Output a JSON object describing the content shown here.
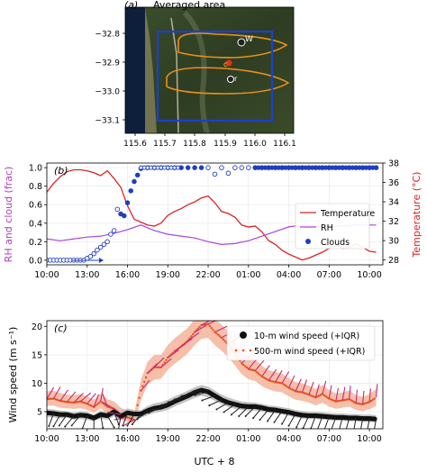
{
  "colors": {
    "temperature": "#dd2222",
    "rh": "#aa44dd",
    "clouds": "#1f3fbf",
    "ws10": "#111111",
    "ws500": "#e8501a",
    "ws500_fill": "#f4b49a",
    "ws10_fill": "#b8b8b8",
    "barb500": "#c4287a",
    "barb10": "#222222",
    "rhAxis": "#b040c0",
    "tempAxis": "#dd2222",
    "mapBox": "#1a3fd6",
    "mapContour": "#e8901a"
  },
  "panels": {
    "a": {
      "label": "(a)",
      "title": "Averaged area",
      "yticks": [
        "−32.8",
        "−32.9",
        "−33.0",
        "−33.1"
      ],
      "xticks": [
        "115.6",
        "115.7",
        "115.8",
        "115.9",
        "116.0",
        "116.1"
      ],
      "markers": [
        "W",
        "c",
        "r"
      ]
    },
    "b": {
      "label": "(b)",
      "ylabel_left": "RH and cloud (frac)",
      "ylabel_right": "Temperature (°C)",
      "yticks_left": [
        "0.0",
        "0.2",
        "0.4",
        "0.6",
        "0.8",
        "1.0"
      ],
      "yticks_right": [
        "28",
        "30",
        "32",
        "34",
        "36",
        "38"
      ],
      "xticks": [
        "10:00",
        "13:00",
        "16:00",
        "19:00",
        "22:00",
        "01:00",
        "04:00",
        "07:00",
        "10:00"
      ],
      "legend": [
        "Temperature",
        "RH",
        "Clouds"
      ]
    },
    "c": {
      "label": "(c)",
      "ylabel": "Wind speed (m s⁻¹)",
      "xlabel": "UTC + 8",
      "yticks": [
        "5",
        "10",
        "15",
        "20"
      ],
      "xticks": [
        "10:00",
        "13:00",
        "16:00",
        "19:00",
        "22:00",
        "01:00",
        "04:00",
        "07:00",
        "10:00"
      ],
      "legend": [
        "10-m wind speed (+IQR)",
        "500-m wind speed (+IQR)"
      ]
    }
  },
  "chart_data": [
    {
      "type": "line",
      "panel": "b",
      "x_unit": "hours since 10:00 (UTC+8)",
      "xlim": [
        0,
        25
      ],
      "ylim_left": [
        -0.05,
        1.05
      ],
      "ylim_right": [
        27.5,
        38
      ],
      "series": [
        {
          "name": "Temperature",
          "axis": "right",
          "x": [
            0,
            0.5,
            1,
            1.5,
            2,
            2.5,
            3,
            3.5,
            4,
            4.5,
            5,
            5.5,
            6,
            6.5,
            7,
            7.5,
            8,
            8.5,
            9,
            9.5,
            10,
            10.5,
            11,
            11.5,
            12,
            12.5,
            13,
            13.5,
            14,
            14.5,
            15,
            15.5,
            16,
            16.5,
            17,
            17.5,
            18,
            18.5,
            19,
            19.5,
            20,
            20.5,
            21,
            21.5,
            22,
            22.5,
            23,
            23.5,
            24,
            24.5
          ],
          "y": [
            35.0,
            35.9,
            36.6,
            37.1,
            37.3,
            37.3,
            37.2,
            37.0,
            36.7,
            37.2,
            36.4,
            35.5,
            33.6,
            32.2,
            31.9,
            31.6,
            31.5,
            31.8,
            32.6,
            33.0,
            33.3,
            33.7,
            34.0,
            34.4,
            34.6,
            33.9,
            33.0,
            32.8,
            32.4,
            31.6,
            31.4,
            31.5,
            30.9,
            30.0,
            29.6,
            29.0,
            28.6,
            28.3,
            28.0,
            28.2,
            28.5,
            28.8,
            29.2,
            29.6,
            29.2,
            29.3,
            29.7,
            29.3,
            28.9,
            28.8
          ]
        },
        {
          "name": "RH",
          "axis": "left",
          "x": [
            0,
            1,
            2,
            3,
            4,
            5,
            6,
            7,
            8,
            9,
            10,
            11,
            12,
            13,
            14,
            15,
            16,
            17,
            18,
            19,
            20,
            21,
            22,
            23,
            24,
            24.5
          ],
          "y": [
            0.23,
            0.21,
            0.23,
            0.25,
            0.26,
            0.29,
            0.33,
            0.38,
            0.32,
            0.28,
            0.26,
            0.24,
            0.2,
            0.17,
            0.18,
            0.21,
            0.26,
            0.31,
            0.36,
            0.38,
            0.37,
            0.36,
            0.37,
            0.38,
            0.38,
            0.38
          ]
        },
        {
          "name": "Clouds",
          "axis": "left",
          "marker": "circle",
          "x": [
            0,
            0.25,
            0.5,
            0.75,
            1,
            1.25,
            1.5,
            1.75,
            2,
            2.25,
            2.5,
            2.75,
            3,
            3.25,
            3.5,
            3.75,
            4,
            4.25,
            4.5,
            4.75,
            5,
            5.25,
            5.5,
            5.75,
            6,
            6.25,
            6.5,
            6.75,
            7,
            7.5,
            8,
            8.5,
            9,
            9.5,
            10,
            10.5,
            11,
            11.5,
            12,
            12.5,
            13,
            13.5,
            14,
            14.5,
            15,
            15.5,
            16,
            16.5,
            17,
            17.5,
            18,
            18.5,
            19,
            19.5,
            20,
            20.5,
            21,
            21.5,
            22,
            22.5,
            23,
            23.5,
            24,
            24.5
          ],
          "y": [
            0.0,
            0.0,
            0.0,
            0.0,
            0.0,
            0.0,
            0.0,
            0.0,
            0.0,
            0.0,
            0.0,
            0.0,
            0.02,
            0.04,
            0.07,
            0.11,
            0.14,
            0.17,
            0.2,
            0.28,
            0.32,
            0.55,
            0.5,
            0.48,
            0.62,
            0.75,
            0.85,
            0.92,
            0.99,
            1.0,
            1.0,
            1.0,
            1.0,
            1.0,
            1.0,
            1.0,
            1.0,
            1.0,
            1.0,
            0.93,
            1.0,
            0.94,
            1.0,
            1.0,
            1.0,
            1.0,
            1.0,
            1.0,
            1.0,
            1.0,
            1.0,
            1.0,
            1.0,
            1.0,
            1.0,
            1.0,
            1.0,
            1.0,
            1.0,
            1.0,
            1.0,
            1.0,
            1.0,
            1.0
          ]
        }
      ]
    },
    {
      "type": "line",
      "panel": "c",
      "x_unit": "hours since 10:00 (UTC+8)",
      "xlim": [
        0,
        25
      ],
      "ylim": [
        2,
        21
      ],
      "xlabel": "UTC + 8",
      "ylabel": "Wind speed (m s⁻¹)",
      "series": [
        {
          "name": "10-m wind speed (+IQR)",
          "marker": "circle",
          "x": [
            0,
            0.5,
            1,
            1.5,
            2,
            2.5,
            3,
            3.5,
            4,
            4.5,
            5,
            5.5,
            6,
            6.5,
            7,
            7.5,
            8,
            8.5,
            9,
            9.5,
            10,
            10.5,
            11,
            11.5,
            12,
            12.5,
            13,
            13.5,
            14,
            14.5,
            15,
            15.5,
            16,
            16.5,
            17,
            17.5,
            18,
            18.5,
            19,
            19.5,
            20,
            20.5,
            21,
            21.5,
            22,
            22.5,
            23,
            23.5,
            24,
            24.5
          ],
          "y": [
            4.8,
            4.7,
            4.5,
            4.5,
            4.2,
            4.4,
            4.3,
            3.9,
            4.5,
            4.3,
            5.0,
            4.2,
            4.8,
            4.6,
            4.6,
            5.2,
            5.6,
            5.8,
            6.2,
            6.8,
            7.3,
            7.8,
            8.4,
            8.8,
            8.5,
            7.8,
            7.1,
            6.6,
            6.3,
            6.0,
            5.9,
            5.9,
            5.7,
            5.4,
            5.3,
            5.1,
            4.9,
            4.6,
            4.4,
            4.3,
            4.3,
            4.2,
            4.1,
            4.0,
            4.0,
            3.9,
            3.9,
            3.8,
            3.8,
            3.7
          ],
          "iqr_low": [
            4.1,
            4.0,
            3.8,
            3.9,
            3.6,
            3.7,
            3.6,
            3.3,
            3.8,
            3.6,
            4.2,
            3.5,
            4.0,
            3.9,
            3.9,
            4.4,
            4.8,
            5.0,
            5.3,
            5.9,
            6.4,
            6.9,
            7.4,
            7.8,
            7.5,
            6.9,
            6.3,
            5.8,
            5.5,
            5.3,
            5.2,
            5.2,
            5.0,
            4.8,
            4.7,
            4.5,
            4.3,
            4.0,
            3.8,
            3.7,
            3.7,
            3.6,
            3.5,
            3.4,
            3.4,
            3.3,
            3.3,
            3.2,
            3.2,
            3.1
          ],
          "iqr_high": [
            5.5,
            5.4,
            5.2,
            5.1,
            4.9,
            5.1,
            5.0,
            4.5,
            5.2,
            5.0,
            5.9,
            5.0,
            5.6,
            5.3,
            5.3,
            6.0,
            6.5,
            6.7,
            7.1,
            7.7,
            8.2,
            8.7,
            9.3,
            9.7,
            9.4,
            8.7,
            8.0,
            7.5,
            7.1,
            6.8,
            6.7,
            6.6,
            6.4,
            6.1,
            6.0,
            5.8,
            5.6,
            5.3,
            5.1,
            5.0,
            5.0,
            4.9,
            4.8,
            4.7,
            4.7,
            4.6,
            4.6,
            4.5,
            4.5,
            4.4
          ]
        },
        {
          "name": "500-m wind speed (+IQR)",
          "marker": "dot",
          "x": [
            0,
            0.5,
            1,
            1.5,
            2,
            2.5,
            3,
            3.5,
            4,
            4.5,
            5,
            5.5,
            6,
            6.5,
            7,
            7.5,
            8,
            8.5,
            9,
            9.5,
            10,
            10.5,
            11,
            11.5,
            12,
            12.5,
            13,
            13.5,
            14,
            14.5,
            15,
            15.5,
            16,
            16.5,
            17,
            17.5,
            18,
            18.5,
            19,
            19.5,
            20,
            20.5,
            21,
            21.5,
            22,
            22.5,
            23,
            23.5,
            24,
            24.5
          ],
          "y": [
            7.2,
            7.3,
            6.9,
            6.7,
            6.6,
            6.8,
            6.4,
            5.8,
            6.8,
            5.9,
            5.5,
            4.5,
            4.0,
            3.6,
            8.7,
            11.8,
            12.8,
            12.8,
            14.5,
            15.6,
            16.5,
            17.5,
            19.0,
            20.2,
            20.4,
            19.0,
            18.0,
            16.8,
            15.2,
            13.5,
            12.5,
            12.2,
            11.2,
            10.5,
            10.2,
            10.0,
            9.2,
            8.6,
            8.4,
            8.0,
            7.5,
            8.1,
            7.3,
            6.8,
            7.0,
            7.2,
            6.5,
            6.3,
            6.7,
            7.5
          ],
          "iqr_low": [
            6.0,
            6.1,
            5.7,
            5.6,
            5.5,
            5.6,
            5.3,
            4.8,
            5.6,
            4.8,
            4.5,
            3.6,
            3.2,
            2.9,
            7.0,
            9.8,
            10.6,
            10.8,
            12.4,
            13.4,
            14.3,
            15.3,
            16.7,
            17.8,
            18.0,
            16.7,
            15.7,
            14.6,
            13.1,
            11.6,
            10.7,
            10.4,
            9.5,
            8.9,
            8.6,
            8.4,
            7.7,
            7.1,
            6.9,
            6.6,
            6.1,
            6.6,
            5.9,
            5.5,
            5.7,
            5.9,
            5.3,
            5.1,
            5.4,
            6.0
          ],
          "iqr_high": [
            8.6,
            8.7,
            8.3,
            8.0,
            7.9,
            8.1,
            7.7,
            7.1,
            8.2,
            7.2,
            6.8,
            5.7,
            5.2,
            4.7,
            10.6,
            13.8,
            15.0,
            15.0,
            16.7,
            17.9,
            18.8,
            19.8,
            21.3,
            22.6,
            22.8,
            21.3,
            20.3,
            19.1,
            17.4,
            15.6,
            14.5,
            14.2,
            13.1,
            12.3,
            12.0,
            11.7,
            10.9,
            10.2,
            10.0,
            9.6,
            9.0,
            9.7,
            8.8,
            8.2,
            8.4,
            8.7,
            7.9,
            7.6,
            8.1,
            9.0
          ]
        }
      ]
    }
  ]
}
